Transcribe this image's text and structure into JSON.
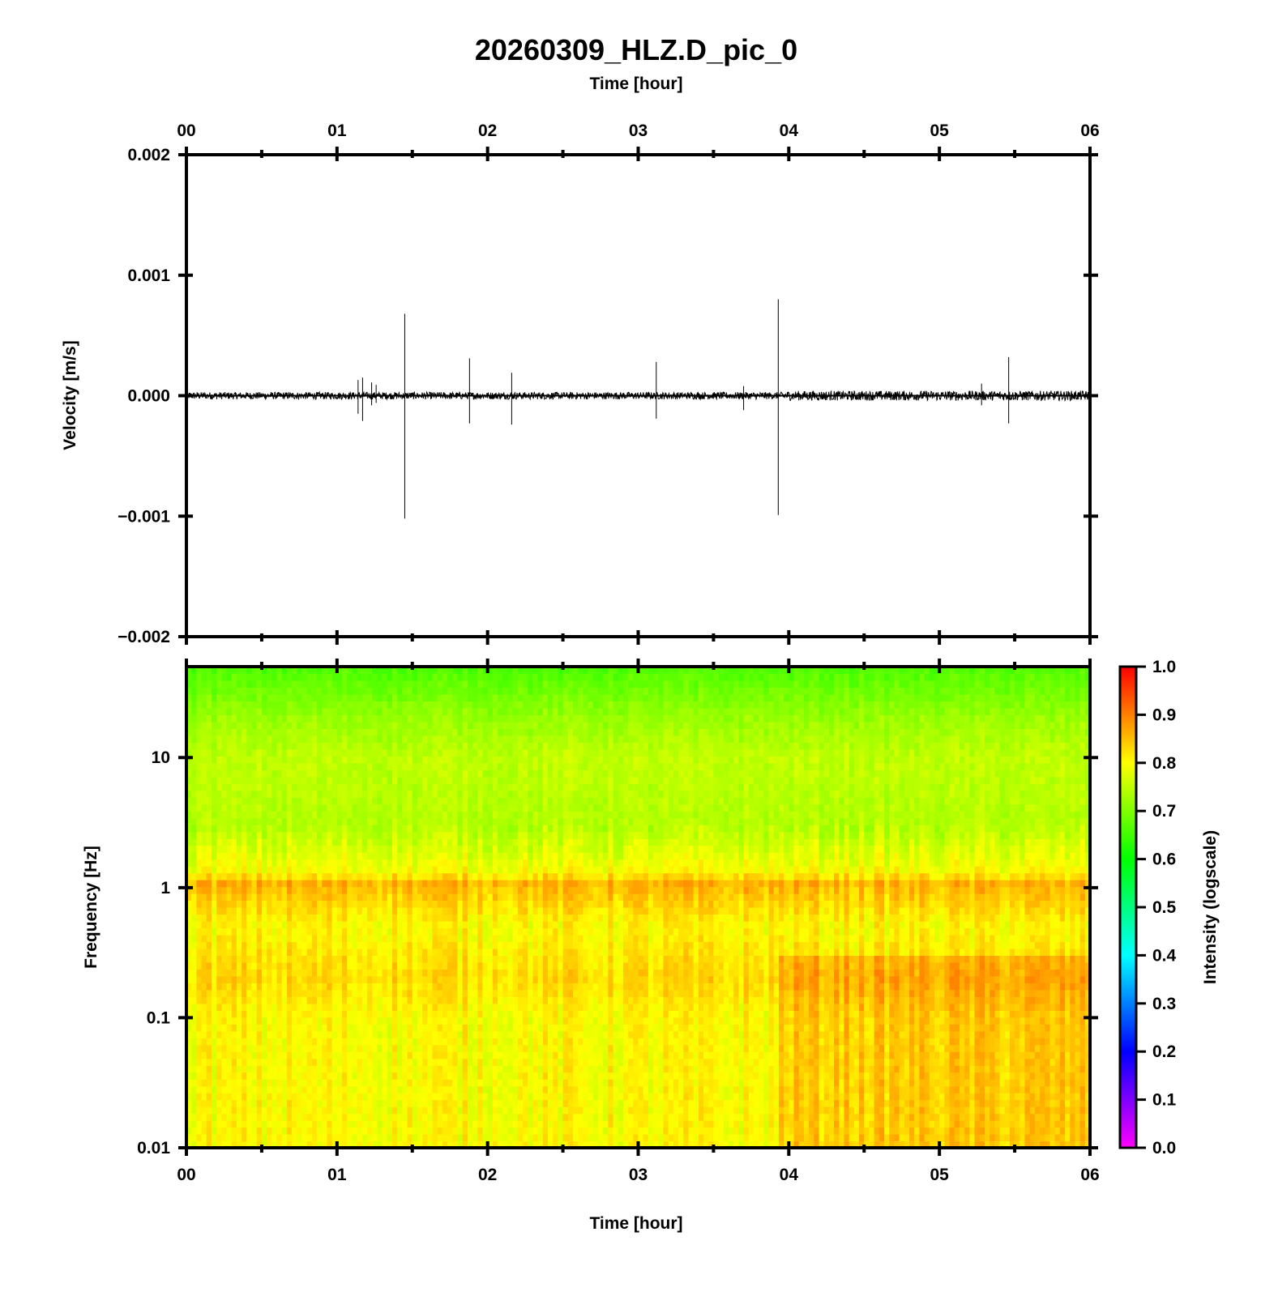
{
  "chart_data": [
    {
      "type": "line",
      "title": "20260309_HLZ.D_pic_0",
      "xlabel": "Time [hour]",
      "ylabel": "Velocity [m/s]",
      "x_ticks": [
        "00",
        "01",
        "02",
        "03",
        "04",
        "05",
        "06"
      ],
      "y_ticks": [
        "0.002",
        "0.001",
        "0.000",
        "−0.001",
        "−0.002"
      ],
      "xlim": [
        0,
        6
      ],
      "ylim": [
        -0.002,
        0.002
      ],
      "grid": false,
      "line_color": "#000000",
      "noise_amplitude": 3e-05,
      "spikes": [
        {
          "x": 1.14,
          "ymax": 0.00013,
          "ymin": -0.00015
        },
        {
          "x": 1.17,
          "ymax": 0.00015,
          "ymin": -0.00021
        },
        {
          "x": 1.23,
          "ymax": 0.00011,
          "ymin": -8e-05
        },
        {
          "x": 1.26,
          "ymax": 9e-05,
          "ymin": -6e-05
        },
        {
          "x": 1.45,
          "ymax": 0.00068,
          "ymin": -0.00102
        },
        {
          "x": 1.88,
          "ymax": 0.00031,
          "ymin": -0.00023
        },
        {
          "x": 2.16,
          "ymax": 0.00019,
          "ymin": -0.00024
        },
        {
          "x": 3.12,
          "ymax": 0.00028,
          "ymin": -0.00019
        },
        {
          "x": 3.7,
          "ymax": 8e-05,
          "ymin": -0.00012
        },
        {
          "x": 3.93,
          "ymax": 0.0008,
          "ymin": -0.00099
        },
        {
          "x": 5.28,
          "ymax": 0.0001,
          "ymin": -8e-05
        },
        {
          "x": 5.46,
          "ymax": 0.00032,
          "ymin": -0.00023
        }
      ]
    },
    {
      "type": "heatmap",
      "xlabel": "Time [hour]",
      "ylabel": "Frequency [Hz]",
      "x_ticks": [
        "00",
        "01",
        "02",
        "03",
        "04",
        "05",
        "06"
      ],
      "y_ticks": [
        "10",
        "1",
        "0.1",
        "0.01"
      ],
      "xlim": [
        0,
        6
      ],
      "ylim": [
        0.01,
        50
      ],
      "yscale": "log",
      "colorbar": {
        "label": "Intensity (logscale)",
        "ticks": [
          "1.0",
          "0.9",
          "0.8",
          "0.7",
          "0.6",
          "0.5",
          "0.4",
          "0.3",
          "0.2",
          "0.1",
          "0.0"
        ],
        "range": [
          0,
          1
        ],
        "colors": [
          "#ff00ff",
          "#0000ff",
          "#00ffff",
          "#00ff00",
          "#ffff00",
          "#ff0000"
        ]
      },
      "intensity_profile": [
        {
          "freq": 50,
          "value": 0.66
        },
        {
          "freq": 20,
          "value": 0.72
        },
        {
          "freq": 10,
          "value": 0.75
        },
        {
          "freq": 3,
          "value": 0.74
        },
        {
          "freq": 1.3,
          "value": 0.8
        },
        {
          "freq": 1.1,
          "value": 0.86
        },
        {
          "freq": 0.5,
          "value": 0.8
        },
        {
          "freq": 0.2,
          "value": 0.83
        },
        {
          "freq": 0.1,
          "value": 0.8
        },
        {
          "freq": 0.01,
          "value": 0.8
        }
      ],
      "later_period_start_hour": 3.93,
      "later_period_boost": 0.04
    }
  ]
}
